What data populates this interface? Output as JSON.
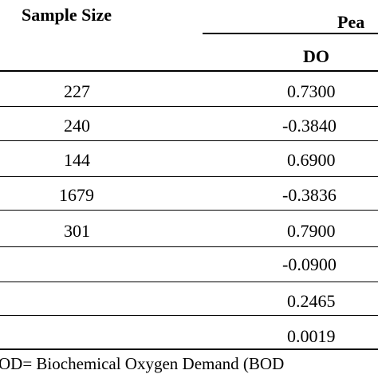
{
  "table": {
    "header": {
      "sample_size": "Sample Size",
      "group_partial": "Pea",
      "subheader_do": "DO"
    },
    "rows": [
      {
        "sample_size": "227",
        "do": "0.7300"
      },
      {
        "sample_size": "240",
        "do": "-0.3840"
      },
      {
        "sample_size": "144",
        "do": "0.6900"
      },
      {
        "sample_size": "1679",
        "do": "-0.3836"
      },
      {
        "sample_size": "301",
        "do": "0.7900"
      },
      {
        "sample_size": "",
        "do": "-0.0900"
      },
      {
        "sample_size": "",
        "do": "0.2465"
      },
      {
        "sample_size": "",
        "do": "0.0019"
      }
    ],
    "footnote": "OD= Biochemical Oxygen Demand (BOD"
  }
}
